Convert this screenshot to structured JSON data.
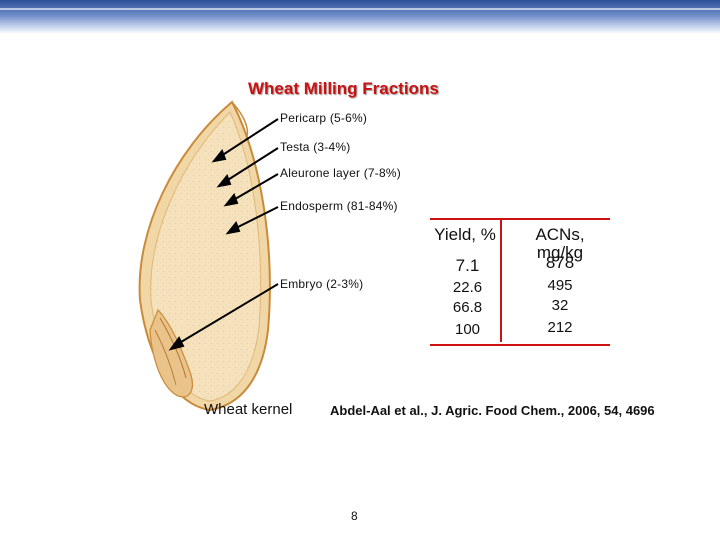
{
  "title": "Wheat Milling Fractions",
  "fractions": [
    {
      "label": "Pericarp (5-6%)"
    },
    {
      "label": "Testa (3-4%)"
    },
    {
      "label": "Aleurone layer (7-8%)"
    },
    {
      "label": "Endosperm (81-84%)"
    },
    {
      "label": "Embryo (2-3%)"
    }
  ],
  "table": {
    "col1_header": "Yield, %",
    "col2_header": "ACNs, mg/kg",
    "yield": [
      "7.1",
      "22.6",
      "66.8",
      "100"
    ],
    "acns": [
      "878",
      "495",
      "32",
      "212"
    ]
  },
  "kernel_caption": "Wheat kernel",
  "citation": "Abdel-Aal et al., J. Agric. Food Chem., 2006, 54, 4696",
  "page_number": "8",
  "colors": {
    "title": "#cc1111",
    "rule": "#cc1111",
    "kernel_fill": "#f3dcb0",
    "kernel_outline": "#c98b3a"
  }
}
